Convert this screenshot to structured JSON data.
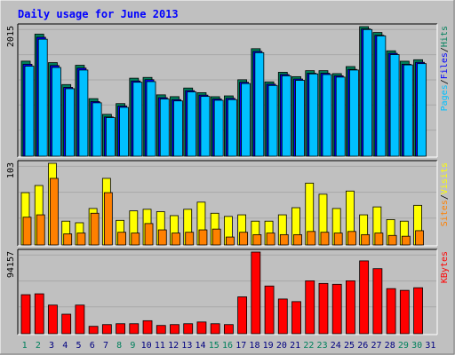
{
  "chart_data": {
    "type": "bar",
    "title": "Daily usage for June 2013",
    "days": [
      "1",
      "2",
      "3",
      "4",
      "5",
      "6",
      "7",
      "8",
      "9",
      "10",
      "11",
      "12",
      "13",
      "14",
      "15",
      "16",
      "17",
      "18",
      "19",
      "20",
      "21",
      "22",
      "23",
      "24",
      "25",
      "26",
      "27",
      "28",
      "29",
      "30",
      "31"
    ],
    "weekend_days": [
      "1",
      "2",
      "8",
      "9",
      "15",
      "16",
      "22",
      "23",
      "29",
      "30"
    ],
    "panels": [
      {
        "id": "pages-files-hits",
        "ymax_label": "2015",
        "ymax": 2015,
        "series": [
          {
            "name": "Hits",
            "color": "#00805c",
            "values": [
              1478,
              1898,
              1455,
              1114,
              1414,
              895,
              651,
              818,
              1213,
              1225,
              954,
              926,
              1060,
              988,
              925,
              938,
              1189,
              1672,
              1156,
              1305,
              1237,
              1330,
              1330,
              1284,
              1394,
              2015,
              1924,
              1639,
              1477,
              1500,
              0
            ]
          },
          {
            "name": "Files",
            "color": "#0000ff",
            "values": [
              1430,
              1850,
              1410,
              1070,
              1370,
              850,
              610,
              780,
              1170,
              1190,
              910,
              880,
              1020,
              950,
              890,
              900,
              1150,
              1630,
              1120,
              1270,
              1200,
              1290,
              1290,
              1250,
              1350,
              1980,
              1880,
              1600,
              1430,
              1460,
              0
            ]
          },
          {
            "name": "Pages",
            "color": "#00c0ff",
            "values": [
              1400,
              1820,
              1380,
              1050,
              1340,
              830,
              600,
              760,
              1150,
              1160,
              890,
              860,
              1000,
              930,
              870,
              880,
              1130,
              1610,
              1100,
              1250,
              1180,
              1280,
              1270,
              1230,
              1340,
              1970,
              1870,
              1580,
              1420,
              1440,
              0
            ]
          }
        ]
      },
      {
        "id": "visits-sites",
        "ymax_label": "103",
        "ymax": 103,
        "series": [
          {
            "name": "Visits",
            "color": "#ffff00",
            "values": [
              66,
              75,
              103,
              30,
              28,
              46,
              84,
              31,
              43,
              45,
              42,
              37,
              45,
              54,
              40,
              36,
              38,
              30,
              30,
              38,
              47,
              78,
              64,
              46,
              68,
              38,
              48,
              32,
              30,
              50,
              0
            ]
          },
          {
            "name": "Sites",
            "color": "#ff8000",
            "values": [
              35,
              38,
              84,
              14,
              15,
              40,
              66,
              16,
              15,
              27,
              19,
              15,
              16,
              19,
              20,
              10,
              16,
              13,
              15,
              13,
              13,
              17,
              16,
              15,
              17,
              13,
              15,
              12,
              11,
              18,
              0
            ]
          }
        ]
      },
      {
        "id": "kbytes",
        "ymax_label": "94157",
        "ymax": 94157,
        "series": [
          {
            "name": "KBytes",
            "color": "#ff0000",
            "values": [
              45000,
              46000,
              33000,
              22500,
              33000,
              8500,
              10500,
              11500,
              11500,
              15000,
              9500,
              10500,
              11500,
              13500,
              11500,
              10500,
              42500,
              94157,
              55000,
              40000,
              37000,
              61000,
              58000,
              57000,
              61000,
              84000,
              75000,
              52000,
              50000,
              53000,
              0
            ]
          }
        ]
      }
    ],
    "legend": {
      "panel1": [
        "Pages",
        "/",
        "Files",
        "/",
        "Hits"
      ],
      "panel2": [
        "Sites",
        "/",
        "Visits"
      ],
      "panel3": [
        "KBytes"
      ]
    }
  },
  "colors": {
    "background": "#c0c0c0",
    "title": "#0000ff",
    "weekday_label": "#00805c",
    "weekend_label": "#00805c",
    "day_label": "#000080"
  }
}
